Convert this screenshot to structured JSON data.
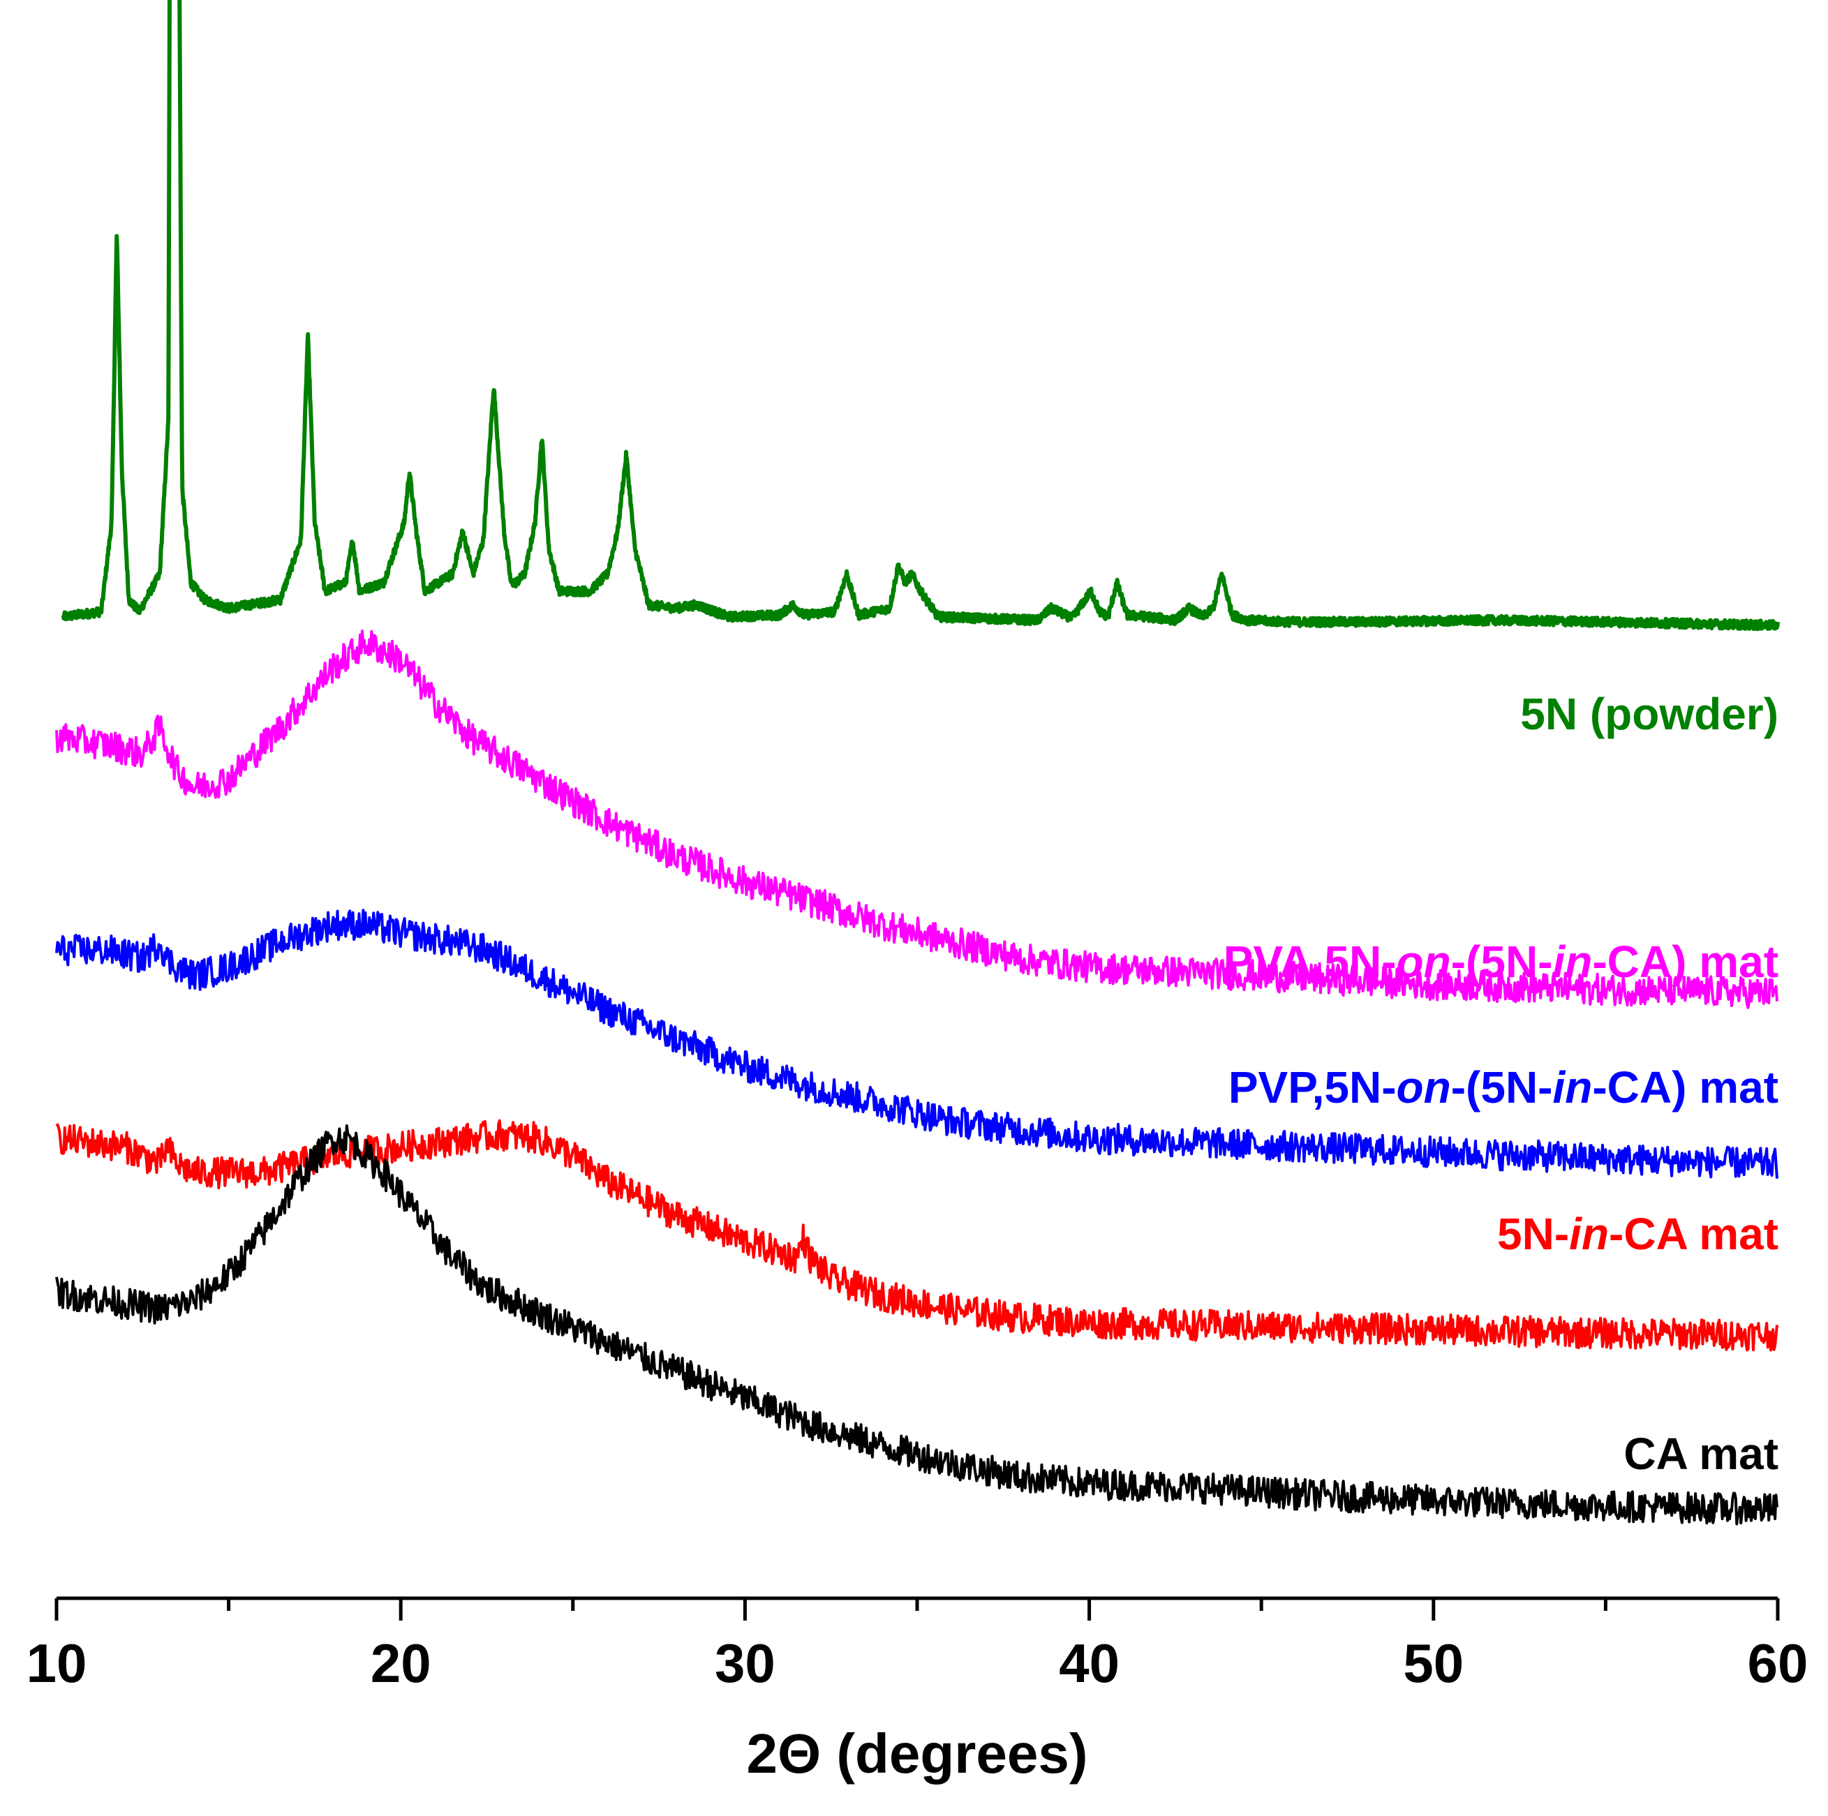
{
  "chart_data": {
    "type": "line",
    "title": "",
    "xlabel": "2Θ (degrees)",
    "ylabel": "",
    "xlim": [
      10,
      60
    ],
    "x_ticks": [
      "10",
      "20",
      "30",
      "40",
      "50",
      "60"
    ],
    "y_axis_visible": false,
    "series": [
      {
        "name": "5N (powder)",
        "color": "#008000",
        "baseline": 5.2,
        "x": [
          10.2,
          11.3,
          11.6,
          11.75,
          11.9,
          12.1,
          12.4,
          13.0,
          13.25,
          13.35,
          13.45,
          13.55,
          13.65,
          13.9,
          14.3,
          15.0,
          16.5,
          17.1,
          17.3,
          17.5,
          17.8,
          18.4,
          18.6,
          18.8,
          19.5,
          20.1,
          20.25,
          20.45,
          20.7,
          21.5,
          21.8,
          22.1,
          22.4,
          22.7,
          23.0,
          23.2,
          23.35,
          23.6,
          23.9,
          24.1,
          24.3,
          24.6,
          25.5,
          26.0,
          26.3,
          26.55,
          26.8,
          27.2,
          28.0,
          28.6,
          29.5,
          31.0,
          31.4,
          31.7,
          32.6,
          32.95,
          33.3,
          34.2,
          34.45,
          34.65,
          34.85,
          35.1,
          35.6,
          38.5,
          38.9,
          39.5,
          40.05,
          40.3,
          40.55,
          40.8,
          41.1,
          41.7,
          42.5,
          42.9,
          43.3,
          43.6,
          43.85,
          44.15,
          44.6,
          45.8,
          47.8,
          51.8,
          55.0,
          60.0
        ],
        "y": [
          0.05,
          0.08,
          0.6,
          2.3,
          0.9,
          0.15,
          0.08,
          0.3,
          1.2,
          8.6,
          10.1,
          4.5,
          0.8,
          0.25,
          0.15,
          0.1,
          0.15,
          0.5,
          1.7,
          0.6,
          0.2,
          0.25,
          0.5,
          0.2,
          0.25,
          0.6,
          0.9,
          0.55,
          0.2,
          0.3,
          0.55,
          0.3,
          0.5,
          1.4,
          0.55,
          0.25,
          0.25,
          0.3,
          0.6,
          1.1,
          0.45,
          0.2,
          0.2,
          0.3,
          0.55,
          1.0,
          0.45,
          0.12,
          0.1,
          0.12,
          0.05,
          0.06,
          0.12,
          0.06,
          0.08,
          0.3,
          0.06,
          0.1,
          0.35,
          0.25,
          0.3,
          0.2,
          0.05,
          0.03,
          0.1,
          0.04,
          0.2,
          0.08,
          0.05,
          0.25,
          0.06,
          0.05,
          0.03,
          0.1,
          0.05,
          0.1,
          0.3,
          0.06,
          0.03,
          0.02,
          0.02,
          0.03,
          0.02,
          0.0
        ]
      },
      {
        "name": "PVA,5N-on-(5N-in-CA) mat",
        "color": "#ff00ff",
        "baseline": 3.0,
        "x": [
          10.0,
          11.5,
          12.5,
          13.0,
          13.2,
          13.5,
          14.0,
          15.0,
          16.5,
          18.0,
          19.0,
          20.0,
          21.0,
          22.0,
          24.0,
          26.0,
          28.0,
          30.0,
          32.0,
          34.0,
          36.0,
          38.0,
          40.0,
          45.0,
          50.0,
          55.0,
          60.0
        ],
        "y": [
          1.55,
          1.5,
          1.45,
          1.6,
          1.5,
          1.35,
          1.25,
          1.3,
          1.6,
          1.95,
          2.1,
          2.0,
          1.75,
          1.55,
          1.3,
          1.05,
          0.85,
          0.7,
          0.58,
          0.45,
          0.35,
          0.25,
          0.2,
          0.15,
          0.1,
          0.07,
          0.05
        ]
      },
      {
        "name": "PVP,5N-on-(5N-in-CA) mat",
        "color": "#0000ff",
        "baseline": 2.0,
        "x": [
          10.0,
          11.5,
          12.5,
          13.0,
          13.2,
          13.5,
          14.0,
          15.0,
          16.5,
          18.0,
          19.0,
          20.0,
          21.5,
          22.5,
          24.0,
          26.0,
          28.0,
          30.0,
          32.0,
          34.0,
          36.0,
          38.0,
          40.0,
          45.0,
          50.0,
          55.0,
          60.0
        ],
        "y": [
          1.3,
          1.3,
          1.25,
          1.35,
          1.25,
          1.2,
          1.15,
          1.2,
          1.35,
          1.45,
          1.45,
          1.4,
          1.35,
          1.3,
          1.15,
          0.95,
          0.78,
          0.62,
          0.5,
          0.4,
          0.3,
          0.25,
          0.2,
          0.16,
          0.12,
          0.08,
          0.05
        ]
      },
      {
        "name": "5N-in-CA mat",
        "color": "#ff0000",
        "baseline": 1.0,
        "x": [
          10.0,
          12.0,
          13.0,
          13.2,
          13.5,
          14.0,
          16.0,
          18.0,
          20.0,
          22.0,
          23.0,
          24.0,
          25.0,
          26.0,
          28.0,
          30.0,
          31.5,
          31.7,
          31.9,
          32.5,
          34.0,
          36.0,
          38.0,
          40.0,
          45.0,
          50.0,
          55.0,
          60.0
        ],
        "y": [
          1.2,
          1.15,
          1.05,
          1.15,
          1.05,
          1.0,
          1.0,
          1.1,
          1.15,
          1.2,
          1.22,
          1.2,
          1.1,
          0.95,
          0.75,
          0.6,
          0.5,
          0.62,
          0.5,
          0.38,
          0.28,
          0.2,
          0.15,
          0.12,
          0.1,
          0.08,
          0.06,
          0.05
        ]
      },
      {
        "name": "CA mat",
        "color": "#000000",
        "baseline": 0.0,
        "x": [
          10.0,
          11.5,
          13.0,
          14.0,
          15.0,
          16.0,
          17.0,
          18.0,
          18.5,
          19.5,
          20.5,
          21.5,
          22.5,
          24.0,
          25.5,
          27.0,
          28.5,
          30.0,
          32.0,
          34.0,
          36.0,
          38.0,
          40.0,
          43.0,
          46.0,
          50.0,
          55.0,
          60.0
        ],
        "y": [
          1.3,
          1.25,
          1.2,
          1.25,
          1.4,
          1.65,
          1.95,
          2.2,
          2.2,
          2.0,
          1.75,
          1.5,
          1.32,
          1.18,
          1.05,
          0.92,
          0.8,
          0.68,
          0.52,
          0.4,
          0.3,
          0.22,
          0.18,
          0.16,
          0.12,
          0.08,
          0.05,
          0.03
        ]
      }
    ]
  }
}
